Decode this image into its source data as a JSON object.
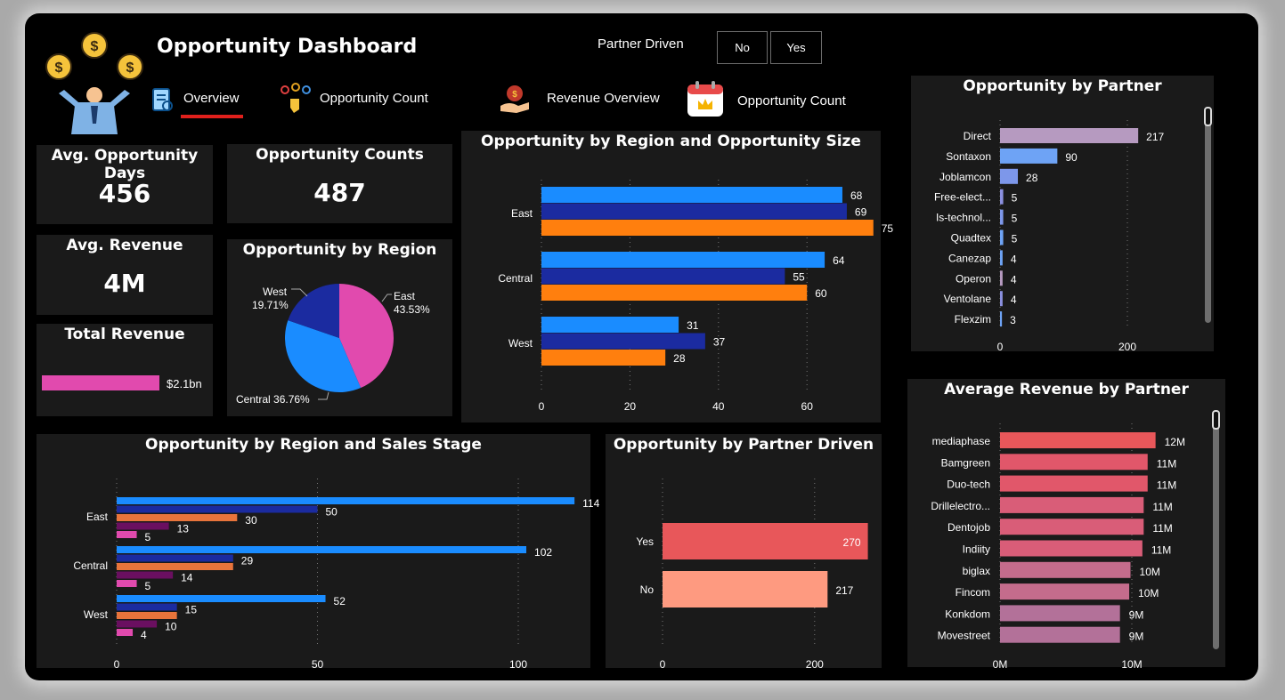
{
  "header": {
    "title": "Opportunity Dashboard",
    "partner_filter_label": "Partner Driven",
    "filter_no": "No",
    "filter_yes": "Yes",
    "nav": [
      {
        "label": "Overview",
        "icon": "report-icon",
        "active": true
      },
      {
        "label": "Opportunity Count",
        "icon": "keys-icon"
      },
      {
        "label": "Revenue Overview",
        "icon": "money-bag-icon"
      },
      {
        "label": "Opportunity Count",
        "icon": "calendar-icon"
      }
    ],
    "accent_color": "#e0201c"
  },
  "kpis": {
    "avg_days": {
      "title": "Avg. Opportunity Days",
      "value": "456"
    },
    "counts": {
      "title": "Opportunity Counts",
      "value": "487"
    },
    "avg_revenue": {
      "title": "Avg. Revenue",
      "value": "4M"
    },
    "total_revenue": {
      "title": "Total Revenue",
      "value": "$2.1bn"
    }
  },
  "chart_data": [
    {
      "id": "region_pie",
      "type": "pie",
      "title": "Opportunity by Region",
      "slices": [
        {
          "name": "East",
          "pct": 43.53,
          "color": "#e14aae"
        },
        {
          "name": "Central",
          "pct": 36.76,
          "color": "#1a8cff"
        },
        {
          "name": "West",
          "pct": 19.71,
          "color": "#1b2ba0"
        }
      ],
      "labels": {
        "East": "East",
        "East_pct": "43.53%",
        "West": "West",
        "West_pct": "19.71%",
        "Central": "Central 36.76%"
      }
    },
    {
      "id": "region_size",
      "type": "bar",
      "title": "Opportunity by Region and Opportunity Size",
      "categories": [
        "East",
        "Central",
        "West"
      ],
      "series": [
        {
          "values": [
            68,
            64,
            31
          ],
          "color": "#1a8cff"
        },
        {
          "values": [
            69,
            55,
            37
          ],
          "color": "#1b2ba0"
        },
        {
          "values": [
            75,
            60,
            28
          ],
          "color": "#ff7f0e"
        }
      ],
      "xlim": [
        0,
        75
      ],
      "xticks": [
        0,
        20,
        40,
        60
      ]
    },
    {
      "id": "partner_count",
      "type": "bar",
      "title": "Opportunity by Partner",
      "categories": [
        "Direct",
        "Sontaxon",
        "Joblamcon",
        "Free-elect...",
        "Is-technol...",
        "Quadtex",
        "Canezap",
        "Operon",
        "Ventolane",
        "Flexzim"
      ],
      "values": [
        217,
        90,
        28,
        5,
        5,
        5,
        4,
        4,
        4,
        3
      ],
      "colors": [
        "#b69ac0",
        "#6ea3f5",
        "#7d97ea",
        "#8b90e0",
        "#7d97ea",
        "#6ea3f5",
        "#6ea3f5",
        "#b69ac0",
        "#8b90e0",
        "#6ea3f5"
      ],
      "xticks": [
        0,
        200
      ],
      "xlim": [
        0,
        300
      ]
    },
    {
      "id": "region_stage",
      "type": "bar",
      "title": "Opportunity by Region and Sales Stage",
      "categories": [
        "East",
        "Central",
        "West"
      ],
      "series": [
        {
          "values": [
            114,
            102,
            52
          ],
          "color": "#1a8cff"
        },
        {
          "values": [
            50,
            29,
            15
          ],
          "color": "#1b2ba0"
        },
        {
          "values": [
            30,
            29,
            15
          ],
          "color": "#e8743b"
        },
        {
          "values": [
            13,
            14,
            10
          ],
          "color": "#6a0f60"
        },
        {
          "values": [
            5,
            5,
            4
          ],
          "color": "#e14aae"
        }
      ],
      "visible_labels": [
        [
          "114",
          "50",
          "30",
          "13",
          "5"
        ],
        [
          "102",
          "29",
          "14",
          "5"
        ],
        [
          "52",
          "15",
          "10",
          "4"
        ]
      ],
      "xticks": [
        0,
        50,
        100
      ],
      "xlim": [
        0,
        120
      ]
    },
    {
      "id": "partner_driven",
      "type": "bar",
      "title": "Opportunity by Partner Driven",
      "categories": [
        "Yes",
        "No"
      ],
      "values": [
        270,
        217
      ],
      "colors": [
        "#e8575a",
        "#fe9a80"
      ],
      "xticks": [
        0,
        200
      ],
      "xlim": [
        0,
        300
      ]
    },
    {
      "id": "avg_revenue_partner",
      "type": "bar",
      "title": "Average Revenue by Partner",
      "categories": [
        "mediaphase",
        "Bamgreen",
        "Duo-tech",
        "Drillelectro...",
        "Dentojob",
        "Indiity",
        "biglax",
        "Fincom",
        "Konkdom",
        "Movestreet"
      ],
      "values": [
        11.8,
        11.2,
        11.2,
        10.9,
        10.9,
        10.8,
        9.9,
        9.8,
        9.1,
        9.1
      ],
      "value_labels": [
        "12M",
        "11M",
        "11M",
        "11M",
        "11M",
        "11M",
        "10M",
        "10M",
        "9M",
        "9M"
      ],
      "colors": [
        "#e8575a",
        "#e1576a",
        "#e1576a",
        "#d95d78",
        "#d95d78",
        "#d95d78",
        "#c46c8c",
        "#c46c8c",
        "#b37199",
        "#b37199"
      ],
      "xticks": [
        "0M",
        "10M"
      ],
      "xlim": [
        0,
        14
      ]
    }
  ]
}
